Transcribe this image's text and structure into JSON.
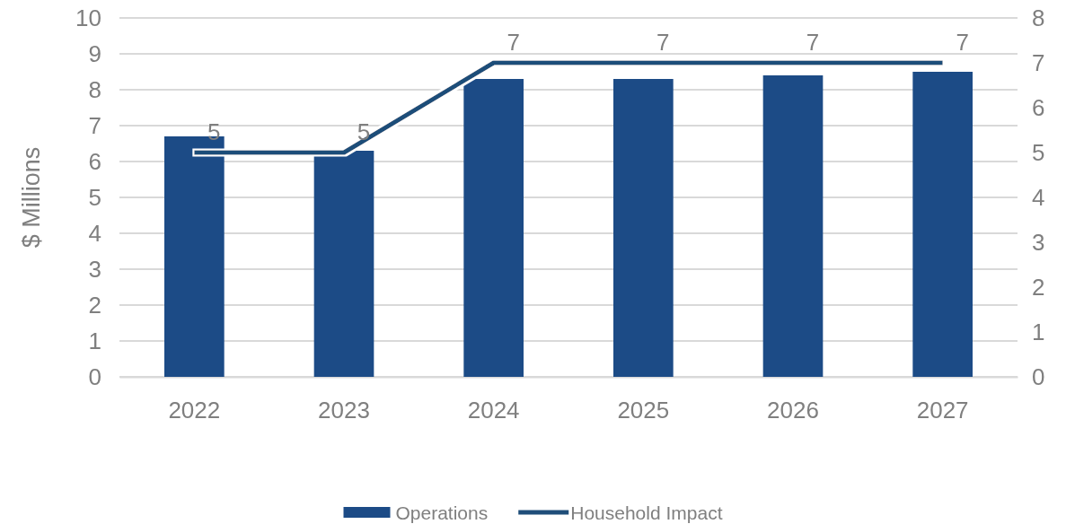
{
  "chart_data": {
    "type": "bar",
    "ylabel": "$ Millions",
    "categories": [
      "2022",
      "2023",
      "2024",
      "2025",
      "2026",
      "2027"
    ],
    "series": [
      {
        "name": "Operations",
        "color": "#1c4b86",
        "values": [
          6.7,
          6.3,
          8.3,
          8.3,
          8.4,
          8.5
        ]
      },
      {
        "name": "Household Impact",
        "type": "line",
        "axis": "y2",
        "color": "#1f4e79",
        "values": [
          5,
          5,
          7,
          7,
          7,
          7
        ],
        "data_labels": true
      }
    ],
    "ylim": [
      0,
      10
    ],
    "yticks": [
      0,
      1,
      2,
      3,
      4,
      5,
      6,
      7,
      8,
      9,
      10
    ],
    "y2lim": [
      0,
      8
    ],
    "y2ticks": [
      0,
      1,
      2,
      3,
      4,
      5,
      6,
      7,
      8
    ],
    "grid": "y",
    "legend": "bottom",
    "marker": "none",
    "line_style": "solid"
  }
}
